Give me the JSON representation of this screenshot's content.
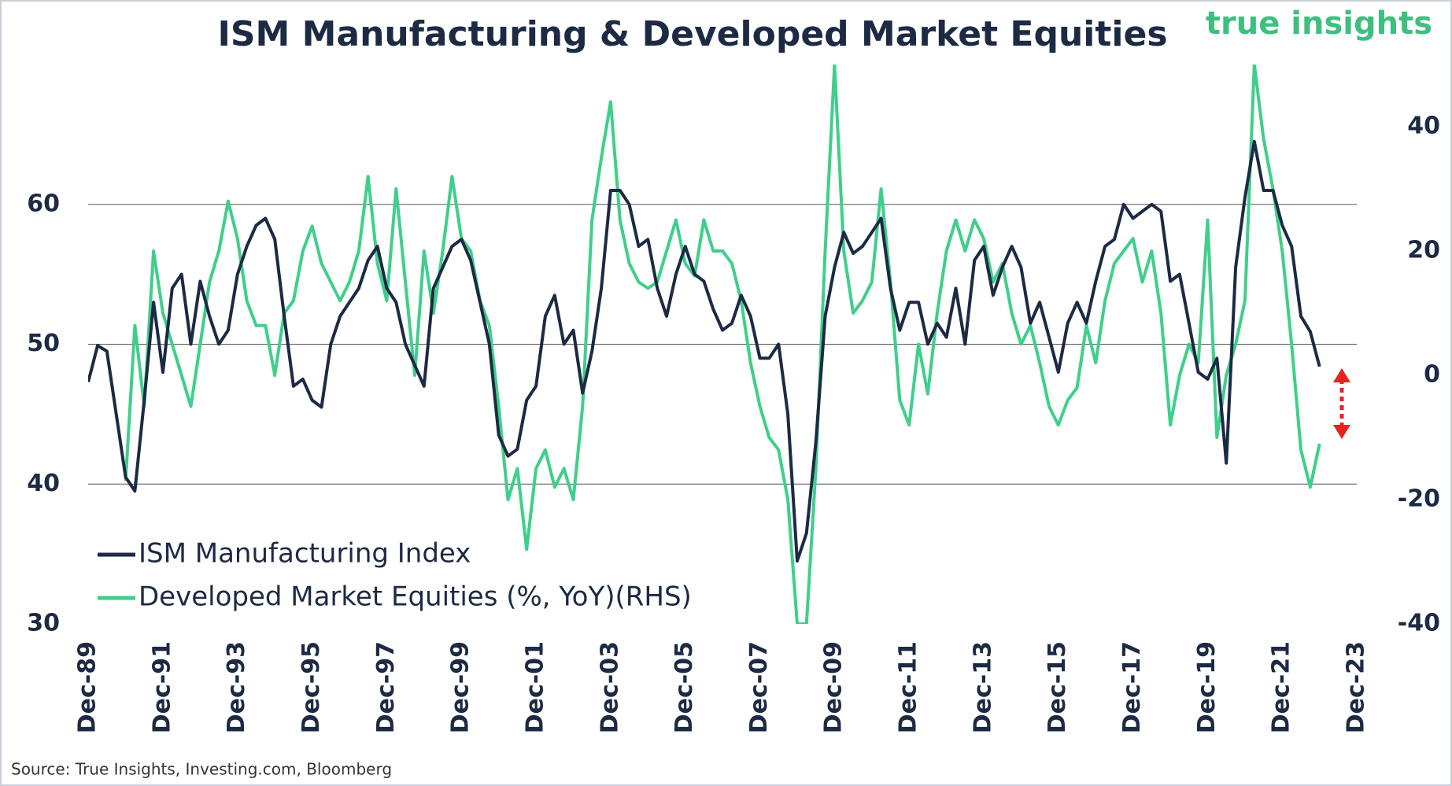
{
  "chart_data": {
    "type": "line",
    "title": "ISM Manufacturing & Developed Market Equities",
    "brand": "true insights",
    "source": "Source: True Insights, Investing.com, Bloomberg",
    "legend": "lower left",
    "grid": true,
    "xlim": [
      1989.917,
      2023.917
    ],
    "xticks": [
      {
        "value": 1989.917,
        "label": "Dec-89"
      },
      {
        "value": 1991.917,
        "label": "Dec-91"
      },
      {
        "value": 1993.917,
        "label": "Dec-93"
      },
      {
        "value": 1995.917,
        "label": "Dec-95"
      },
      {
        "value": 1997.917,
        "label": "Dec-97"
      },
      {
        "value": 1999.917,
        "label": "Dec-99"
      },
      {
        "value": 2001.917,
        "label": "Dec-01"
      },
      {
        "value": 2003.917,
        "label": "Dec-03"
      },
      {
        "value": 2005.917,
        "label": "Dec-05"
      },
      {
        "value": 2007.917,
        "label": "Dec-07"
      },
      {
        "value": 2009.917,
        "label": "Dec-09"
      },
      {
        "value": 2011.917,
        "label": "Dec-11"
      },
      {
        "value": 2013.917,
        "label": "Dec-13"
      },
      {
        "value": 2015.917,
        "label": "Dec-15"
      },
      {
        "value": 2017.917,
        "label": "Dec-17"
      },
      {
        "value": 2019.917,
        "label": "Dec-19"
      },
      {
        "value": 2021.917,
        "label": "Dec-21"
      },
      {
        "value": 2023.917,
        "label": "Dec-23"
      }
    ],
    "ylim": [
      30,
      70
    ],
    "yticks": [
      30,
      40,
      50,
      60
    ],
    "y2lim": [
      -40,
      50
    ],
    "y2ticks": [
      -40,
      -20,
      0,
      20,
      40
    ],
    "x": [
      1989.92,
      1990.17,
      1990.42,
      1990.67,
      1990.92,
      1991.17,
      1991.42,
      1991.67,
      1991.92,
      1992.17,
      1992.42,
      1992.67,
      1992.92,
      1993.17,
      1993.42,
      1993.67,
      1993.92,
      1994.17,
      1994.42,
      1994.67,
      1994.92,
      1995.17,
      1995.42,
      1995.67,
      1995.92,
      1996.17,
      1996.42,
      1996.67,
      1996.92,
      1997.17,
      1997.42,
      1997.67,
      1997.92,
      1998.17,
      1998.42,
      1998.67,
      1998.92,
      1999.17,
      1999.42,
      1999.67,
      1999.92,
      2000.17,
      2000.42,
      2000.67,
      2000.92,
      2001.17,
      2001.42,
      2001.67,
      2001.92,
      2002.17,
      2002.42,
      2002.67,
      2002.92,
      2003.17,
      2003.42,
      2003.67,
      2003.92,
      2004.17,
      2004.42,
      2004.67,
      2004.92,
      2005.17,
      2005.42,
      2005.67,
      2005.92,
      2006.17,
      2006.42,
      2006.67,
      2006.92,
      2007.17,
      2007.42,
      2007.67,
      2007.92,
      2008.17,
      2008.42,
      2008.67,
      2008.92,
      2009.17,
      2009.42,
      2009.67,
      2009.92,
      2010.17,
      2010.42,
      2010.67,
      2010.92,
      2011.17,
      2011.42,
      2011.67,
      2011.92,
      2012.17,
      2012.42,
      2012.67,
      2012.92,
      2013.17,
      2013.42,
      2013.67,
      2013.92,
      2014.17,
      2014.42,
      2014.67,
      2014.92,
      2015.17,
      2015.42,
      2015.67,
      2015.92,
      2016.17,
      2016.42,
      2016.67,
      2016.92,
      2017.17,
      2017.42,
      2017.67,
      2017.92,
      2018.17,
      2018.42,
      2018.67,
      2018.92,
      2019.17,
      2019.42,
      2019.67,
      2019.92,
      2020.17,
      2020.42,
      2020.67,
      2020.92,
      2021.17,
      2021.42,
      2021.67,
      2021.92,
      2022.17,
      2022.42,
      2022.67,
      2022.92
    ],
    "series": [
      {
        "name": "ISM Manufacturing Index",
        "color": "#1c2a44",
        "values": [
          47.3,
          49.9,
          49.5,
          45,
          40.5,
          39.5,
          46,
          53,
          48,
          54,
          55,
          50,
          54.5,
          52,
          50,
          51,
          55,
          57,
          58.5,
          59,
          57.5,
          52,
          47,
          47.5,
          46,
          45.5,
          50,
          52,
          53,
          54,
          56,
          57,
          54,
          53,
          50,
          48.5,
          47,
          54,
          55.5,
          57,
          57.5,
          56,
          53,
          50,
          43.5,
          42,
          42.5,
          46,
          47,
          52,
          53.5,
          50,
          51,
          46.5,
          49.5,
          54,
          61,
          61,
          60,
          57,
          57.5,
          54,
          52,
          55,
          57,
          55,
          54.5,
          52.5,
          51,
          51.5,
          53.5,
          52,
          49,
          49,
          50,
          45,
          34.5,
          36.5,
          43,
          52,
          55.5,
          58,
          56.5,
          57,
          58,
          59,
          54,
          51,
          53,
          53,
          50,
          51.5,
          50.5,
          54,
          50,
          56,
          57,
          53.5,
          55.5,
          57,
          55.5,
          51.5,
          53,
          50.5,
          48,
          51.5,
          53,
          51.5,
          54.5,
          57,
          57.5,
          60,
          59,
          59.5,
          60,
          59.5,
          54.5,
          55,
          51.5,
          48,
          47.5,
          49,
          41.5,
          55.5,
          60.5,
          64.5,
          61,
          61,
          58.5,
          57,
          52,
          50.9,
          48.4
        ]
      },
      {
        "name": "Developed Market Equities (%, YoY)(RHS)",
        "color": "#3fcf8a",
        "axis": "y2",
        "values": [
          null,
          null,
          null,
          null,
          -17,
          8,
          -5,
          20,
          10,
          5,
          0,
          -5,
          5,
          15,
          20,
          28,
          22,
          12,
          8,
          8,
          0,
          10,
          12,
          20,
          24,
          18,
          15,
          12,
          15,
          20,
          32,
          18,
          12,
          30,
          15,
          0,
          20,
          10,
          20,
          32,
          22,
          20,
          12,
          8,
          -5,
          -20,
          -15,
          -28,
          -15,
          -12,
          -18,
          -15,
          -20,
          -5,
          25,
          35,
          44,
          25,
          18,
          15,
          14,
          15,
          20,
          25,
          18,
          16,
          25,
          20,
          20,
          18,
          12,
          2,
          -5,
          -10,
          -12,
          -20,
          -40,
          -40,
          -15,
          20,
          50,
          20,
          10,
          12,
          15,
          30,
          15,
          -4,
          -8,
          5,
          -3,
          10,
          20,
          25,
          20,
          25,
          22,
          15,
          18,
          10,
          5,
          8,
          2,
          -5,
          -8,
          -4,
          -2,
          8,
          2,
          12,
          18,
          20,
          22,
          15,
          20,
          10,
          -8,
          0,
          5,
          2,
          25,
          -10,
          0,
          5,
          12,
          50,
          38,
          30,
          20,
          5,
          -12,
          -18,
          -11
        ]
      }
    ]
  }
}
